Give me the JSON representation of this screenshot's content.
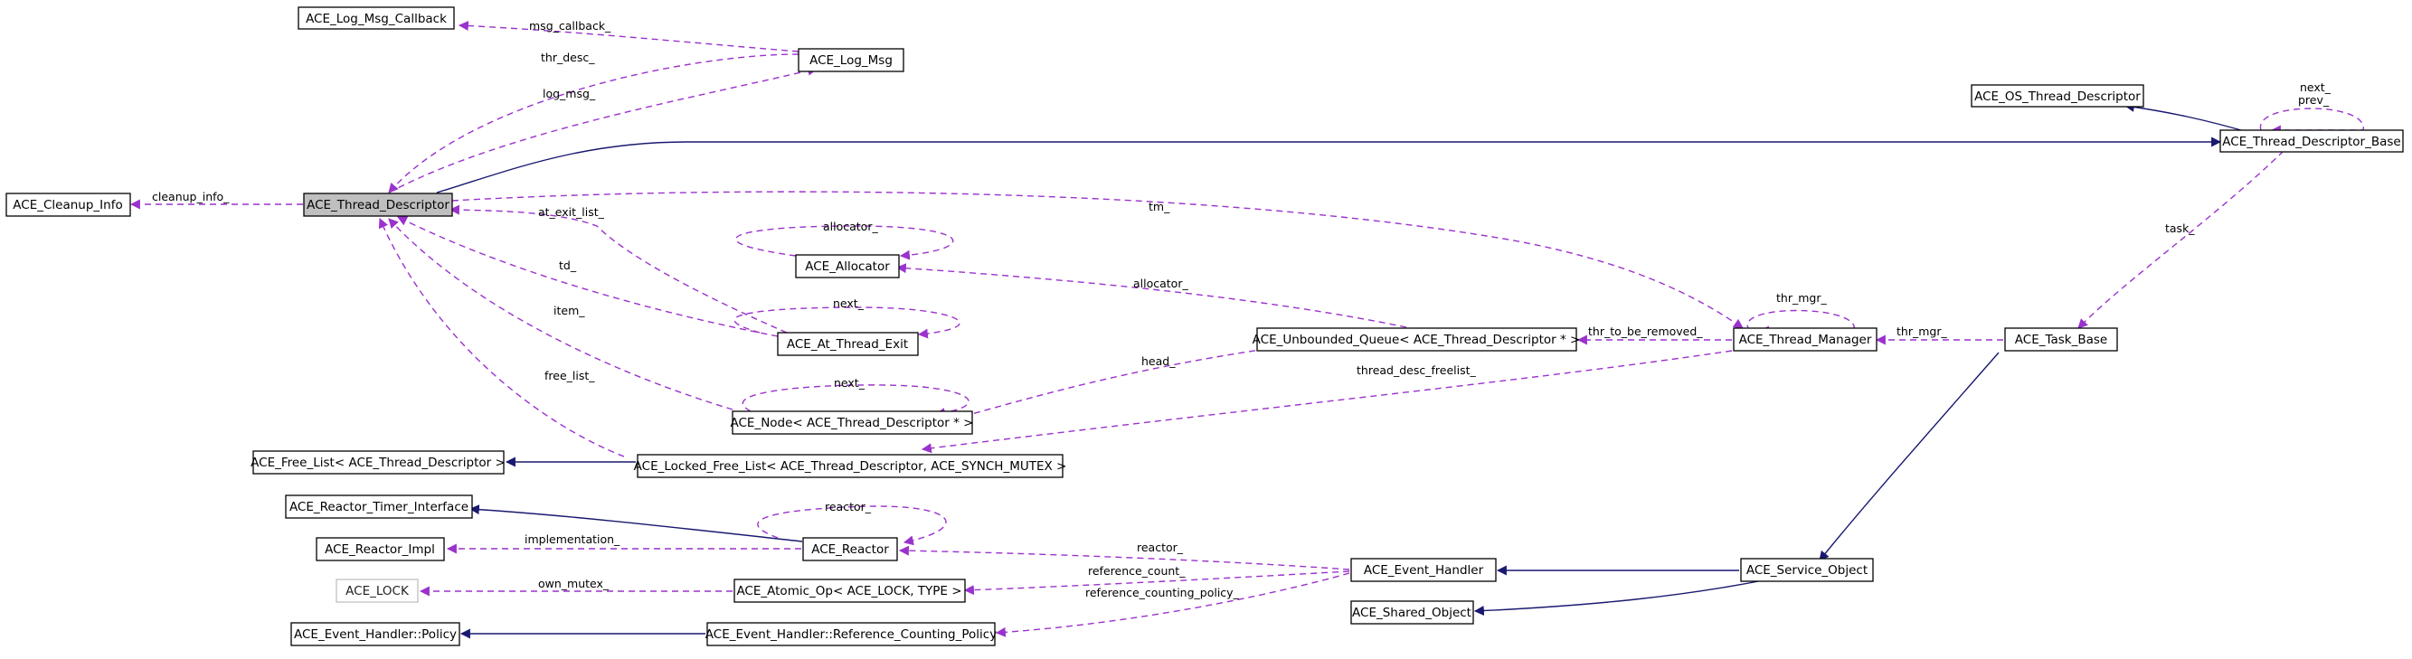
{
  "colors": {
    "usage_edge": "#9a32cd",
    "inherit_edge": "#191970",
    "focus_node_fill": "#bfbfbf",
    "ghost_node_border": "#bfbfbf"
  },
  "nodes": {
    "log_msg_callback": "ACE_Log_Msg_Callback",
    "log_msg": "ACE_Log_Msg",
    "os_thread_descriptor": "ACE_OS_Thread_Descriptor",
    "thread_descriptor_base": "ACE_Thread_Descriptor_Base",
    "cleanup_info": "ACE_Cleanup_Info",
    "thread_descriptor": "ACE_Thread_Descriptor",
    "allocator": "ACE_Allocator",
    "at_thread_exit": "ACE_At_Thread_Exit",
    "unbounded_queue": "ACE_Unbounded_Queue< ACE_Thread_Descriptor * >",
    "thread_manager": "ACE_Thread_Manager",
    "task_base": "ACE_Task_Base",
    "node": "ACE_Node< ACE_Thread_Descriptor * >",
    "free_list": "ACE_Free_List< ACE_Thread_Descriptor >",
    "locked_free_list": "ACE_Locked_Free_List< ACE_Thread_Descriptor, ACE_SYNCH_MUTEX >",
    "reactor_timer_interface": "ACE_Reactor_Timer_Interface",
    "reactor_impl": "ACE_Reactor_Impl",
    "reactor": "ACE_Reactor",
    "lock": "ACE_LOCK",
    "atomic_op": "ACE_Atomic_Op< ACE_LOCK, TYPE >",
    "event_handler": "ACE_Event_Handler",
    "service_object": "ACE_Service_Object",
    "shared_object": "ACE_Shared_Object",
    "event_handler_policy": "ACE_Event_Handler::Policy",
    "reference_counting_policy": "ACE_Event_Handler::Reference_Counting_Policy"
  },
  "edge_labels": {
    "msg_callback": "msg_callback_",
    "thr_desc": "thr_desc_",
    "log_msg": "log_msg_",
    "next": "next_",
    "prev": "prev_",
    "cleanup_info": "cleanup_info_",
    "tm": "tm_",
    "task": "task_",
    "at_exit_list": "at_exit_list_",
    "allocator": "allocator_",
    "allocator_queue": "allocator_",
    "td": "td_",
    "next_exit": "next_",
    "item": "item_",
    "thr_mgr_self": "thr_mgr_",
    "thr_to_be_removed": "thr_to_be_removed_",
    "thr_mgr": "thr_mgr_",
    "head": "head_",
    "thread_desc_freelist": "thread_desc_freelist_",
    "free_list": "free_list_",
    "next_node": "next_",
    "reactor_self": "reactor_",
    "implementation": "implementation_",
    "reactor": "reactor_",
    "reference_count": "reference_count_",
    "own_mutex": "own_mutex_",
    "reference_counting_policy": "reference_counting_policy_"
  }
}
